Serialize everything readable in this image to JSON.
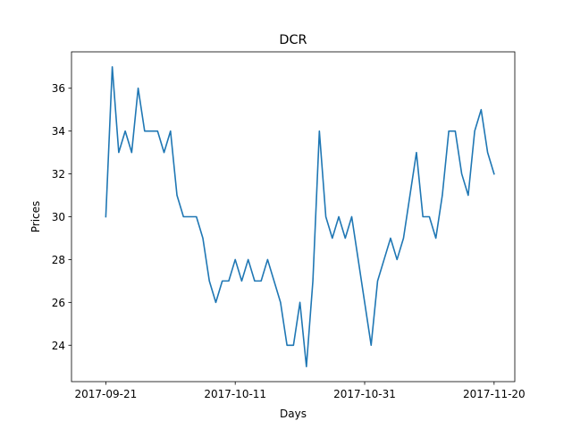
{
  "chart_data": {
    "type": "line",
    "title": "DCR",
    "xlabel": "Days",
    "ylabel": "Prices",
    "start_date": "2017-09-21",
    "x_ticks": [
      "2017-09-21",
      "2017-10-11",
      "2017-10-31",
      "2017-11-20"
    ],
    "x_tick_days": [
      0,
      20,
      40,
      60
    ],
    "y_ticks": [
      24,
      26,
      28,
      30,
      32,
      34,
      36
    ],
    "xlim": [
      -5.3,
      63.2
    ],
    "ylim": [
      22.3,
      37.7
    ],
    "grid": false,
    "legend": "none",
    "series": [
      {
        "name": "DCR",
        "color": "#1f77b4",
        "x": [
          0,
          1,
          2,
          3,
          4,
          5,
          6,
          7,
          8,
          9,
          10,
          11,
          12,
          13,
          14,
          15,
          16,
          17,
          18,
          19,
          20,
          21,
          22,
          23,
          24,
          25,
          26,
          27,
          28,
          29,
          30,
          31,
          32,
          33,
          34,
          35,
          36,
          37,
          38,
          39,
          40,
          41,
          42,
          43,
          44,
          45,
          46,
          47,
          48,
          49,
          50,
          51,
          52,
          53,
          54,
          55,
          56,
          57,
          58,
          59,
          60
        ],
        "values": [
          30,
          37,
          33,
          34,
          33,
          36,
          34,
          34,
          34,
          33,
          34,
          31,
          30,
          30,
          30,
          29,
          27,
          26,
          27,
          27,
          28,
          27,
          28,
          27,
          27,
          28,
          27,
          26,
          24,
          24,
          26,
          23,
          27,
          34,
          30,
          29,
          30,
          29,
          30,
          28,
          26,
          24,
          27,
          28,
          29,
          28,
          29,
          31,
          33,
          30,
          30,
          29,
          31,
          34,
          34,
          32,
          31,
          34,
          35,
          33,
          32
        ]
      }
    ]
  }
}
